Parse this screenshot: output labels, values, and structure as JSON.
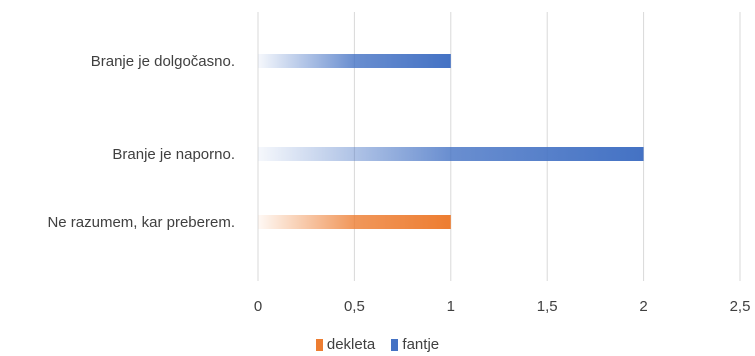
{
  "chart_data": {
    "type": "bar",
    "orientation": "horizontal",
    "categories": [
      "Branje je dolgočasno.",
      "Branje je naporno.",
      "Ne razumem, kar preberem."
    ],
    "series": [
      {
        "name": "dekleta",
        "color": "#ED7D31",
        "values": [
          0,
          0,
          1
        ]
      },
      {
        "name": "fantje",
        "color": "#4472C4",
        "values": [
          1,
          2,
          0
        ]
      }
    ],
    "x_ticks": [
      "0",
      "0,5",
      "1",
      "1,5",
      "2",
      "2,5"
    ],
    "xlim": [
      0,
      2.5
    ],
    "grid": true,
    "legend_position": "bottom"
  }
}
